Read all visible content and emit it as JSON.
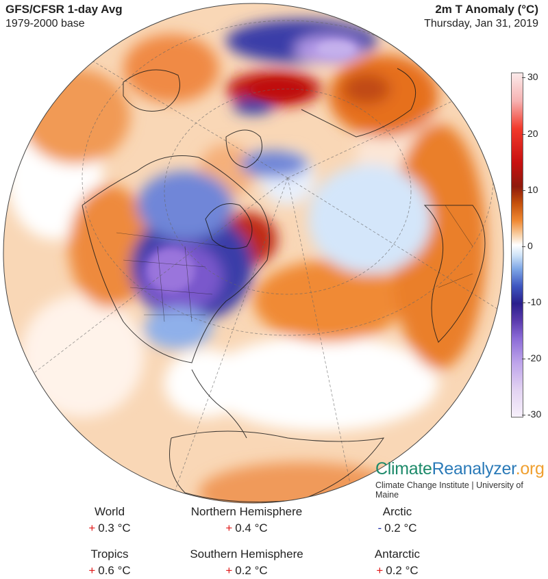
{
  "header": {
    "title_left": "GFS/CFSR 1-day Avg",
    "subtitle_left": "1979-2000 base",
    "title_right": "2m T Anomaly (°C)",
    "subtitle_right": "Thursday, Jan 31, 2019"
  },
  "colorbar": {
    "ticks": [
      "30",
      "20",
      "10",
      "0",
      "-10",
      "-20",
      "-30"
    ]
  },
  "brand": {
    "part1": "Climate",
    "part2": "Reanalyzer",
    "part3": ".org",
    "subtitle": "Climate Change Institute | University of Maine"
  },
  "stats": [
    {
      "label": "World",
      "sign": "+",
      "value": "0.3 °C"
    },
    {
      "label": "Northern Hemisphere",
      "sign": "+",
      "value": "0.4 °C"
    },
    {
      "label": "Arctic",
      "sign": "-",
      "value": "0.2 °C"
    },
    {
      "label": "Tropics",
      "sign": "+",
      "value": "0.6 °C"
    },
    {
      "label": "Southern Hemisphere",
      "sign": "+",
      "value": "0.2 °C"
    },
    {
      "label": "Antarctic",
      "sign": "+",
      "value": "0.2 °C"
    }
  ],
  "colors": {
    "warm": "#f08a34",
    "hot": "#c81010",
    "cold": "#2a1f8c",
    "very_cold": "#8a6ad6",
    "positive_sign": "#e01818",
    "negative_sign": "#1f2fa8"
  }
}
